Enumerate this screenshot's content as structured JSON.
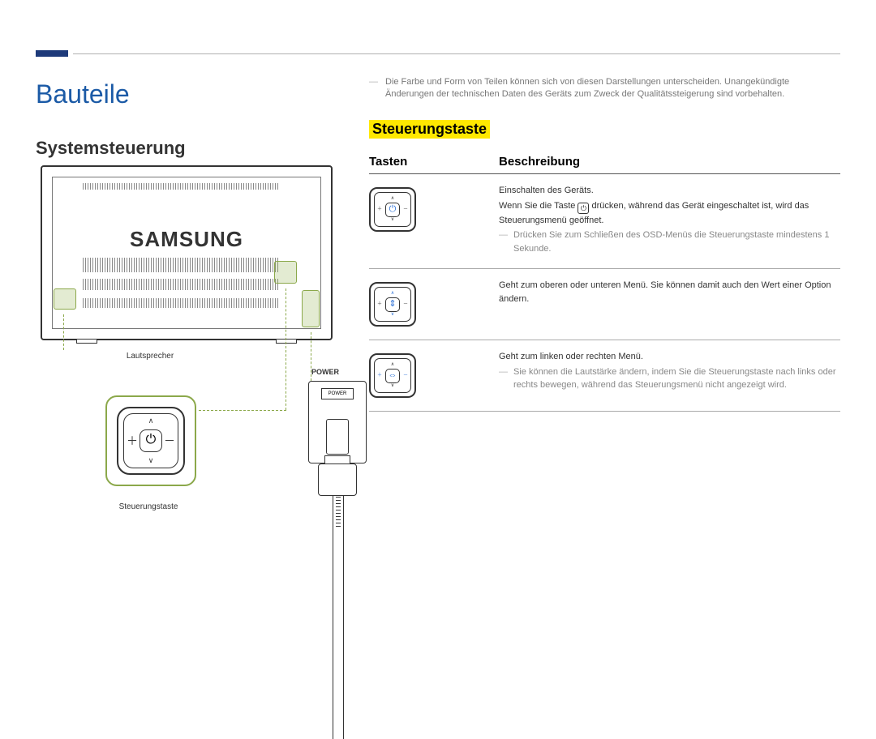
{
  "page": {
    "title": "Bauteile",
    "section": "Systemsteuerung",
    "highlight": "Steuerungstaste",
    "top_note": "Die Farbe und Form von Teilen können sich von diesen Darstellungen unterscheiden. Unangekündigte Änderungen der technischen Daten des Geräts zum Zweck der Qualitätssteigerung sind vorbehalten."
  },
  "colors": {
    "accent_blue": "#1b5aa6",
    "dark_blue_bar": "#1e3a7a",
    "highlight_bg": "#ffe800",
    "callout_green_border": "#8ba84a",
    "callout_green_fill": "rgba(144,175,74,0.25)",
    "icon_highlight": "#2a6fd6",
    "text_gray": "#777777",
    "border_dark": "#333333"
  },
  "diagram": {
    "brand": "SAMSUNG",
    "labels": {
      "speaker": "Lautsprecher",
      "control": "Steuerungstaste",
      "power_title": "POWER",
      "power_switch": "POWER"
    }
  },
  "table": {
    "headers": {
      "buttons": "Tasten",
      "description": "Beschreibung"
    },
    "rows": [
      {
        "icon_mode": "power",
        "main1": "Einschalten des Geräts.",
        "main2_pre": "Wenn Sie die Taste ",
        "main2_post": " drücken, während das Gerät eingeschaltet ist, wird das Steuerungsmenü geöffnet.",
        "sub": "Drücken Sie zum Schließen des OSD-Menüs die Steuerungstaste mindestens 1 Sekunde."
      },
      {
        "icon_mode": "updown",
        "main1": "Geht zum oberen oder unteren Menü. Sie können damit auch den Wert einer Option ändern.",
        "main2_pre": "",
        "main2_post": "",
        "sub": ""
      },
      {
        "icon_mode": "leftright",
        "main1": "Geht zum linken oder rechten Menü.",
        "main2_pre": "",
        "main2_post": "",
        "sub": "Sie können die Lautstärke ändern, indem Sie die Steuerungstaste nach links oder rechts bewegen, während das Steuerungsmenü nicht angezeigt wird."
      }
    ]
  }
}
